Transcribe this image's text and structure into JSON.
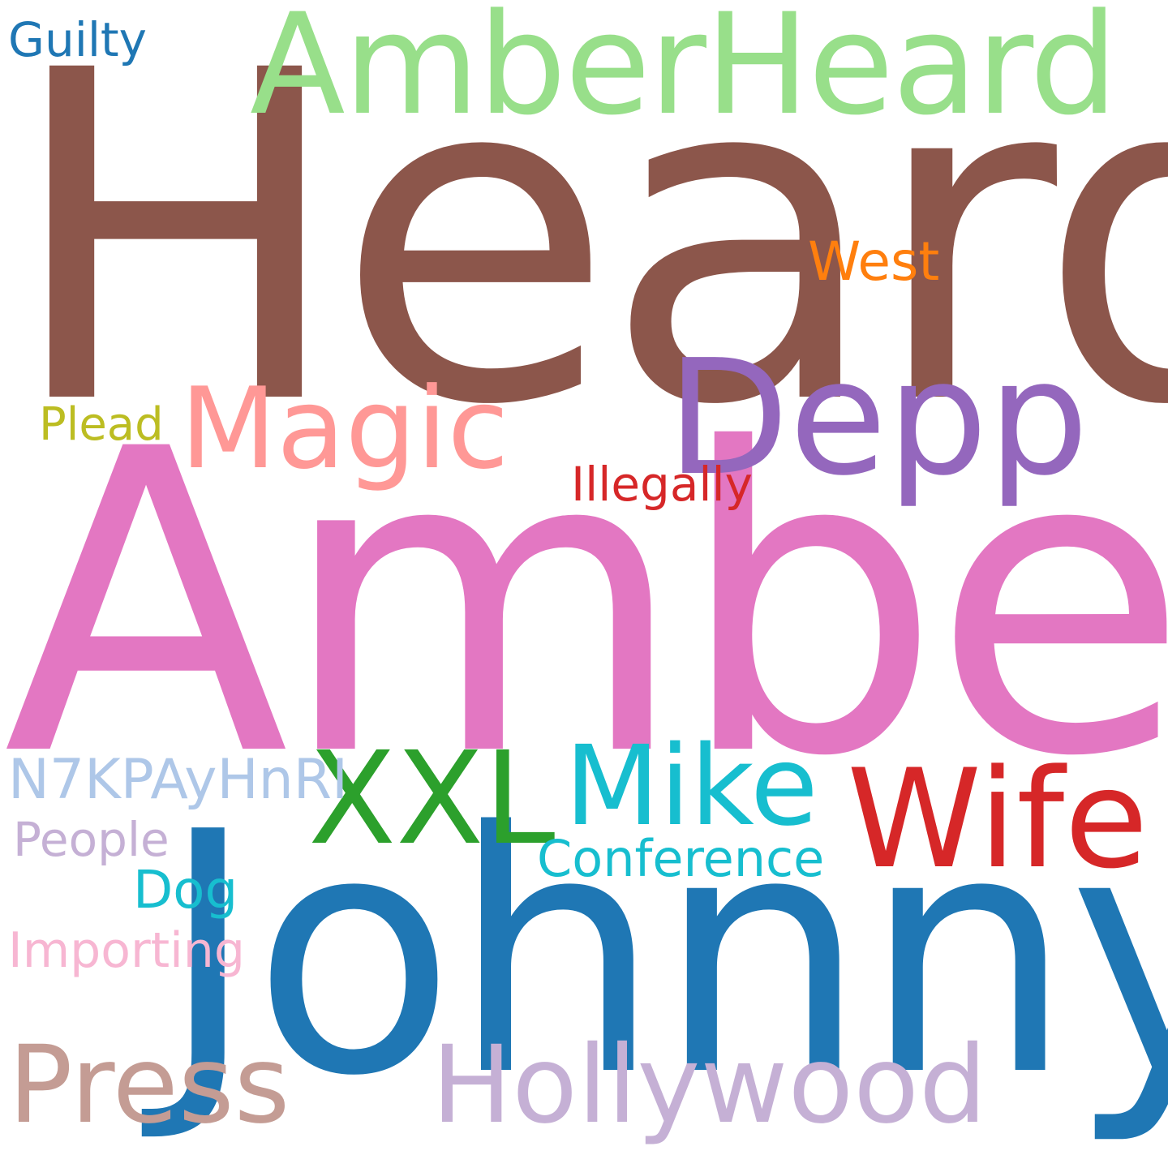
{
  "words": [
    {
      "id": "heard",
      "text": "Heard",
      "color": "#8c564b"
    },
    {
      "id": "amber",
      "text": "Amber",
      "color": "#e377c2"
    },
    {
      "id": "johnny",
      "text": "Johnny",
      "color": "#1f77b4"
    },
    {
      "id": "amberheard",
      "text": "AmberHeard",
      "color": "#98df8a"
    },
    {
      "id": "depp",
      "text": "Depp",
      "color": "#9467bd"
    },
    {
      "id": "magic",
      "text": "Magic",
      "color": "#ff9896"
    },
    {
      "id": "wife",
      "text": "Wife",
      "color": "#d62728"
    },
    {
      "id": "xxl",
      "text": "XXL",
      "color": "#2ca02c"
    },
    {
      "id": "mike",
      "text": "Mike",
      "color": "#17becf"
    },
    {
      "id": "press",
      "text": "Press",
      "color": "#c49c94"
    },
    {
      "id": "hollywood",
      "text": "Hollywood",
      "color": "#c5b0d5"
    },
    {
      "id": "west",
      "text": "West",
      "color": "#ff7f0e"
    },
    {
      "id": "illegally",
      "text": "Illegally",
      "color": "#d62728"
    },
    {
      "id": "plead",
      "text": "Plead",
      "color": "#bcbd22"
    },
    {
      "id": "guilty",
      "text": "Guilty",
      "color": "#1f77b4"
    },
    {
      "id": "n7k",
      "text": "N7KPAyHnRI",
      "color": "#aec7e8"
    },
    {
      "id": "people",
      "text": "People",
      "color": "#c5b0d5"
    },
    {
      "id": "conference",
      "text": "Conference",
      "color": "#17becf"
    },
    {
      "id": "dog",
      "text": "Dog",
      "color": "#17becf"
    },
    {
      "id": "importing",
      "text": "Importing",
      "color": "#f7b6d2"
    }
  ]
}
